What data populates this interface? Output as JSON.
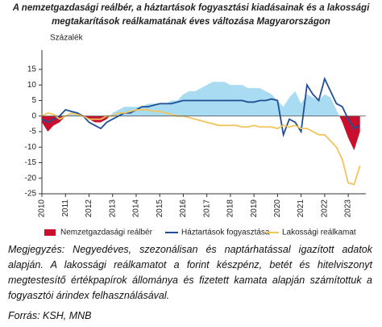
{
  "chart_data": {
    "type": "line",
    "title": [
      "A nemzetgazdasági reálbér, a háztartások fogyasztási kiadásainak és a lakossági",
      "megtakarítások reálkamatának éves változása Magyarországon"
    ],
    "ylabel": "Százalék",
    "x": [
      2010,
      2010.25,
      2010.5,
      2010.75,
      2011,
      2011.25,
      2011.5,
      2011.75,
      2012,
      2012.25,
      2012.5,
      2012.75,
      2013,
      2013.25,
      2013.5,
      2013.75,
      2014,
      2014.25,
      2014.5,
      2014.75,
      2015,
      2015.25,
      2015.5,
      2015.75,
      2016,
      2016.25,
      2016.5,
      2016.75,
      2017,
      2017.25,
      2017.5,
      2017.75,
      2018,
      2018.25,
      2018.5,
      2018.75,
      2019,
      2019.25,
      2019.5,
      2019.75,
      2020,
      2020.25,
      2020.5,
      2020.75,
      2021,
      2021.25,
      2021.5,
      2021.75,
      2022,
      2022.25,
      2022.5,
      2022.75,
      2023,
      2023.25,
      2023.5
    ],
    "xlim": [
      2010,
      2023.75
    ],
    "xticks": [
      2010,
      2011,
      2012,
      2013,
      2014,
      2015,
      2016,
      2017,
      2018,
      2019,
      2020,
      2021,
      2022,
      2023
    ],
    "ylim": [
      -25,
      15
    ],
    "yticks": [
      15,
      10,
      5,
      0,
      -5,
      -10,
      -15,
      -20,
      -25
    ],
    "legend": "bottom",
    "series": [
      {
        "name": "Nemzetgazdasági reálbér",
        "kind": "area",
        "color": "#c8102e",
        "positive_color": "#a9dcf3",
        "values": [
          -2,
          -5,
          -3,
          -2,
          0,
          1,
          1,
          0,
          -1,
          -2,
          -2,
          -1,
          1,
          2,
          3,
          3,
          3,
          3,
          4,
          4,
          4,
          4,
          5,
          5,
          7,
          8,
          8,
          9,
          10,
          11,
          11,
          11,
          10,
          10,
          10,
          9,
          9,
          9,
          8,
          7,
          5,
          3,
          6,
          8,
          4,
          7,
          6,
          5,
          7,
          6,
          2,
          -2,
          -7,
          -11,
          -5
        ]
      },
      {
        "name": "Háztartások fogyasztása",
        "kind": "line",
        "color": "#1f4e96",
        "values": [
          -1,
          -2,
          -1,
          0,
          2,
          1.5,
          1,
          0,
          -2,
          -3,
          -4,
          -2,
          -1,
          0,
          1,
          1,
          2,
          3,
          3,
          3.5,
          4,
          4,
          4,
          4.5,
          5,
          5,
          5,
          5,
          5,
          5,
          5,
          5,
          5,
          5,
          5,
          4.5,
          4.5,
          5,
          5,
          5.5,
          5,
          -6,
          -1,
          -2,
          -5,
          10,
          7,
          5,
          12,
          8,
          4,
          3,
          -1,
          -4,
          -3
        ]
      },
      {
        "name": "Lakossági reálkamat",
        "kind": "line",
        "color": "#f2c45a",
        "values": [
          0,
          1,
          0.5,
          -1,
          0,
          1,
          0.5,
          0,
          -1,
          -1,
          -1,
          0,
          0,
          1,
          1,
          1.5,
          2,
          2,
          2,
          1.5,
          1.5,
          1,
          0.5,
          0,
          0,
          -0.5,
          -1,
          -1.5,
          -2,
          -2.5,
          -3,
          -3,
          -3,
          -3,
          -3.5,
          -3.5,
          -3,
          -3.5,
          -3.5,
          -3.5,
          -4,
          -3,
          -3.5,
          -3,
          -4,
          -4,
          -5,
          -6,
          -6,
          -8,
          -10,
          -14,
          -21.5,
          -22,
          -16
        ]
      }
    ]
  },
  "note": "Megjegyzés: Negyedéves, szezonálisan és naptárhatással igazított adatok alapján. A lakossági reálkamatot a forint készpénz, betét és hitelviszonyt megtestesítő értékpapírok állománya és fizetett kamata alapján számítottuk a fogyasztói árindex felhasználásával.",
  "source": "Forrás: KSH, MNB"
}
